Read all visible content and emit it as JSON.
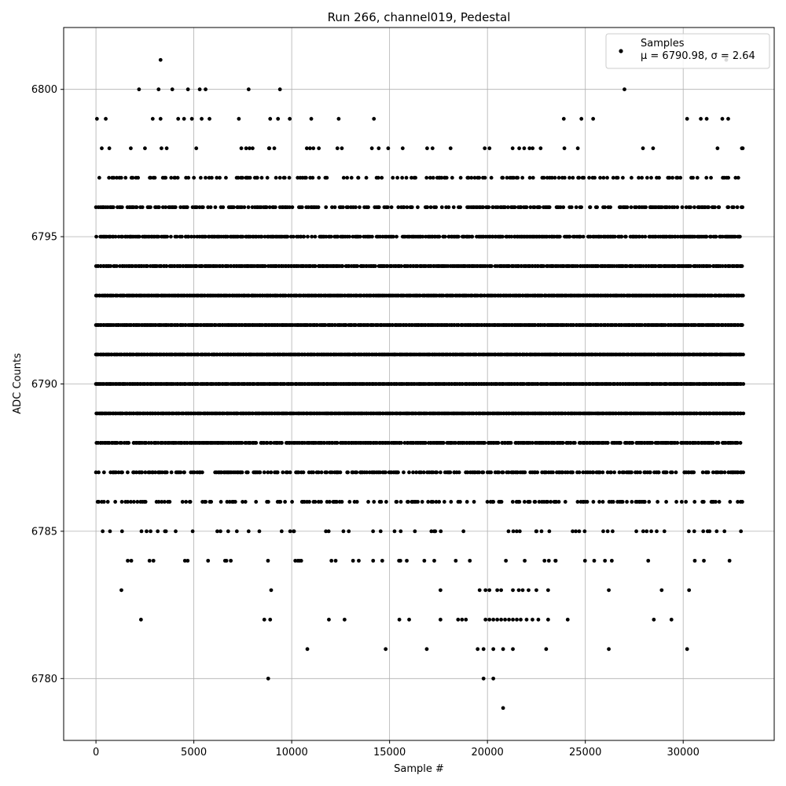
{
  "chart_data": {
    "type": "scatter",
    "title": "Run 266, channel019, Pedestal",
    "xlabel": "Sample #",
    "ylabel": "ADC Counts",
    "xlim": [
      -1650,
      34650
    ],
    "ylim": [
      6777.9,
      6802.1
    ],
    "xticks": [
      0,
      5000,
      10000,
      15000,
      20000,
      25000,
      30000
    ],
    "yticks": [
      6780,
      6785,
      6790,
      6795,
      6800
    ],
    "grid": true,
    "legend_placement": "upper-right",
    "marker_color": "#000000",
    "series": [
      {
        "name": "Samples",
        "annotation": "μ = 6790.98, σ = 2.64",
        "x_range": [
          0,
          33100
        ],
        "dense_levels": [
          6784,
          6785,
          6786,
          6787,
          6788,
          6789,
          6790,
          6791,
          6792,
          6793,
          6794,
          6795,
          6796,
          6797,
          6798
        ],
        "level_density": {
          "6784": 0.08,
          "6785": 0.12,
          "6786": 0.35,
          "6787": 0.6,
          "6788": 0.9,
          "6789": 1.0,
          "6790": 1.0,
          "6791": 1.0,
          "6792": 1.0,
          "6793": 1.0,
          "6794": 0.95,
          "6795": 0.8,
          "6796": 0.55,
          "6797": 0.3,
          "6798": 0.08
        },
        "sparse_points": [
          [
            3300,
            6801
          ],
          [
            32200,
            6801
          ],
          [
            2200,
            6800
          ],
          [
            3200,
            6800
          ],
          [
            3900,
            6800
          ],
          [
            4700,
            6800
          ],
          [
            5300,
            6800
          ],
          [
            5600,
            6800
          ],
          [
            7800,
            6800
          ],
          [
            9400,
            6800
          ],
          [
            27000,
            6800
          ],
          [
            50,
            6799
          ],
          [
            500,
            6799
          ],
          [
            2900,
            6799
          ],
          [
            3300,
            6799
          ],
          [
            4200,
            6799
          ],
          [
            4500,
            6799
          ],
          [
            4900,
            6799
          ],
          [
            5400,
            6799
          ],
          [
            5800,
            6799
          ],
          [
            7300,
            6799
          ],
          [
            8900,
            6799
          ],
          [
            9300,
            6799
          ],
          [
            9900,
            6799
          ],
          [
            11000,
            6799
          ],
          [
            12400,
            6799
          ],
          [
            14200,
            6799
          ],
          [
            23900,
            6799
          ],
          [
            24800,
            6799
          ],
          [
            25400,
            6799
          ],
          [
            30200,
            6799
          ],
          [
            30900,
            6799
          ],
          [
            31200,
            6799
          ],
          [
            32000,
            6799
          ],
          [
            32300,
            6799
          ],
          [
            18200,
            6797
          ],
          [
            19500,
            6797
          ],
          [
            20200,
            6797
          ],
          [
            22800,
            6797
          ],
          [
            23300,
            6797
          ],
          [
            20000,
            6796
          ],
          [
            21700,
            6796
          ],
          [
            22200,
            6796
          ],
          [
            22600,
            6796
          ],
          [
            1300,
            6783
          ],
          [
            8950,
            6783
          ],
          [
            17600,
            6783
          ],
          [
            19600,
            6783
          ],
          [
            19900,
            6783
          ],
          [
            20100,
            6783
          ],
          [
            20500,
            6783
          ],
          [
            20700,
            6783
          ],
          [
            21300,
            6783
          ],
          [
            21600,
            6783
          ],
          [
            21800,
            6783
          ],
          [
            22100,
            6783
          ],
          [
            22500,
            6783
          ],
          [
            23100,
            6783
          ],
          [
            26200,
            6783
          ],
          [
            28900,
            6783
          ],
          [
            30300,
            6783
          ],
          [
            2300,
            6782
          ],
          [
            8600,
            6782
          ],
          [
            8900,
            6782
          ],
          [
            11900,
            6782
          ],
          [
            12700,
            6782
          ],
          [
            15500,
            6782
          ],
          [
            16000,
            6782
          ],
          [
            17600,
            6782
          ],
          [
            18500,
            6782
          ],
          [
            18700,
            6782
          ],
          [
            18900,
            6782
          ],
          [
            19900,
            6782
          ],
          [
            20100,
            6782
          ],
          [
            20300,
            6782
          ],
          [
            20500,
            6782
          ],
          [
            20700,
            6782
          ],
          [
            20900,
            6782
          ],
          [
            21100,
            6782
          ],
          [
            21300,
            6782
          ],
          [
            21500,
            6782
          ],
          [
            21700,
            6782
          ],
          [
            22000,
            6782
          ],
          [
            22300,
            6782
          ],
          [
            22600,
            6782
          ],
          [
            23100,
            6782
          ],
          [
            24100,
            6782
          ],
          [
            28500,
            6782
          ],
          [
            29400,
            6782
          ],
          [
            10800,
            6781
          ],
          [
            14800,
            6781
          ],
          [
            16900,
            6781
          ],
          [
            19500,
            6781
          ],
          [
            19800,
            6781
          ],
          [
            20300,
            6781
          ],
          [
            20800,
            6781
          ],
          [
            21300,
            6781
          ],
          [
            23000,
            6781
          ],
          [
            26200,
            6781
          ],
          [
            30200,
            6781
          ],
          [
            8800,
            6780
          ],
          [
            19800,
            6780
          ],
          [
            20300,
            6780
          ],
          [
            20800,
            6779
          ]
        ]
      }
    ]
  }
}
